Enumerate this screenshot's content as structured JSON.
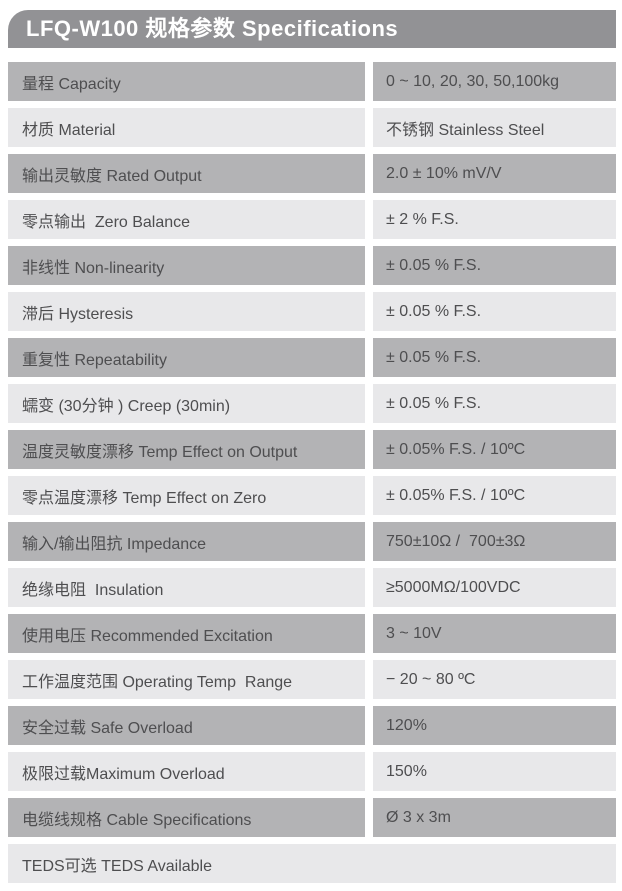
{
  "header": {
    "title": "LFQ-W100 规格参数 Specifications"
  },
  "colors": {
    "header_bg": "#929295",
    "header_text": "#ffffff",
    "row_dark": "#b3b3b5",
    "row_light": "#e8e8ea",
    "text": "#4e4e50"
  },
  "table": {
    "rows": [
      {
        "label": "量程 Capacity",
        "value": "0 ~ 10, 20, 30, 50,100kg"
      },
      {
        "label": "材质 Material",
        "value": "不锈钢 Stainless Steel"
      },
      {
        "label": "输出灵敏度 Rated Output",
        "value": "2.0 ± 10% mV/V"
      },
      {
        "label": "零点输出  Zero Balance",
        "value": "± 2 % F.S."
      },
      {
        "label": "非线性 Non-linearity",
        "value": "± 0.05 % F.S."
      },
      {
        "label": "滞后 Hysteresis",
        "value": "± 0.05 % F.S."
      },
      {
        "label": "重复性 Repeatability",
        "value": "± 0.05 % F.S."
      },
      {
        "label": "蠕变 (30分钟 ) Creep (30min)",
        "value": "± 0.05 % F.S."
      },
      {
        "label": "温度灵敏度漂移 Temp Effect on Output",
        "value": "± 0.05% F.S. / 10ºC"
      },
      {
        "label": "零点温度漂移 Temp Effect on Zero",
        "value": "± 0.05% F.S. / 10ºC"
      },
      {
        "label": "输入/输出阻抗 Impedance",
        "value": "750±10Ω /  700±3Ω"
      },
      {
        "label": "绝缘电阻  Insulation",
        "value": "≥5000MΩ/100VDC"
      },
      {
        "label": "使用电压 Recommended Excitation",
        "value": "3 ~ 10V"
      },
      {
        "label": "工作温度范围 Operating Temp  Range",
        "value": "− 20 ~ 80 ºC"
      },
      {
        "label": "安全过载 Safe Overload",
        "value": "120%"
      },
      {
        "label": "极限过载Maximum Overload",
        "value": "150%"
      },
      {
        "label": "电缆线规格 Cable Specifications",
        "value": "Ø 3 x 3m"
      },
      {
        "label": "TEDS可选 TEDS Available",
        "value": null
      }
    ]
  }
}
